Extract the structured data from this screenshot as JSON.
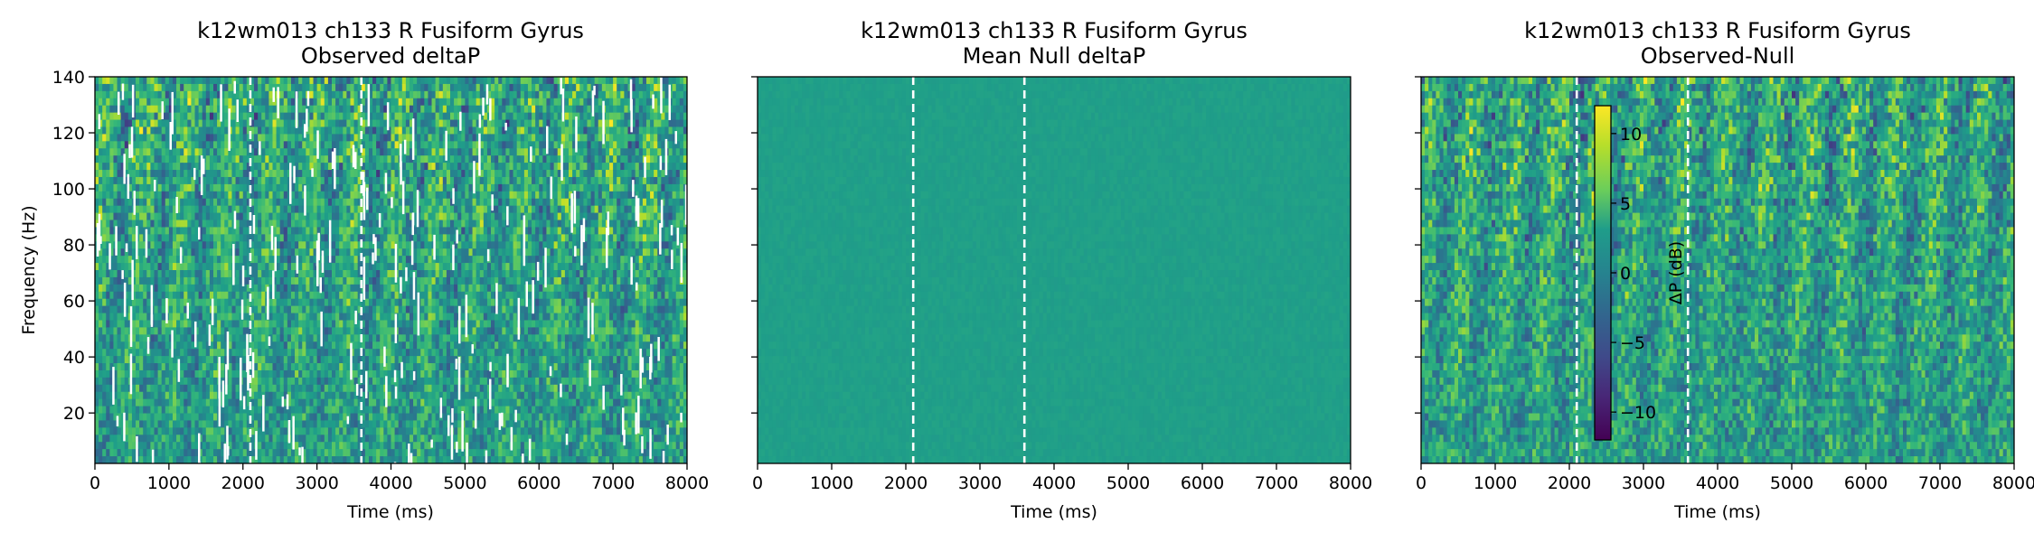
{
  "chart_data": [
    {
      "type": "heatmap",
      "title": "k12wm013 ch133 R Fusiform Gyrus",
      "subtitle": "Observed deltaP",
      "xlabel": "Time (ms)",
      "ylabel": "Frequency (Hz)",
      "xlim": [
        0,
        8000
      ],
      "ylim": [
        2,
        140
      ],
      "xticks": [
        "0",
        "1000",
        "2000",
        "3000",
        "4000",
        "5000",
        "6000",
        "7000",
        "8000"
      ],
      "yticks": [
        "20",
        "40",
        "60",
        "80",
        "100",
        "120",
        "140"
      ],
      "vlines_ms": [
        2100,
        3600
      ],
      "colormap": "viridis"
    },
    {
      "type": "heatmap",
      "title": "k12wm013 ch133 R Fusiform Gyrus",
      "subtitle": "Mean Null deltaP",
      "xlabel": "Time (ms)",
      "ylabel": "",
      "xlim": [
        0,
        8000
      ],
      "ylim": [
        2,
        140
      ],
      "xticks": [
        "0",
        "1000",
        "2000",
        "3000",
        "4000",
        "5000",
        "6000",
        "7000",
        "8000"
      ],
      "yticks": [],
      "vlines_ms": [
        2100,
        3600
      ],
      "colormap": "viridis"
    },
    {
      "type": "heatmap",
      "title": "k12wm013 ch133 R Fusiform Gyrus",
      "subtitle": "Observed-Null",
      "xlabel": "Time (ms)",
      "ylabel": "",
      "xlim": [
        0,
        8000
      ],
      "ylim": [
        2,
        140
      ],
      "xticks": [
        "0",
        "1000",
        "2000",
        "3000",
        "4000",
        "5000",
        "6000",
        "7000",
        "8000"
      ],
      "yticks": [],
      "vlines_ms": [
        2100,
        3600
      ],
      "colormap": "viridis",
      "colorbar": {
        "label": "ΔP (dB)",
        "range": [
          -12,
          12
        ],
        "ticks": [
          "10",
          "5",
          "0",
          "−5",
          "−10"
        ]
      }
    }
  ]
}
